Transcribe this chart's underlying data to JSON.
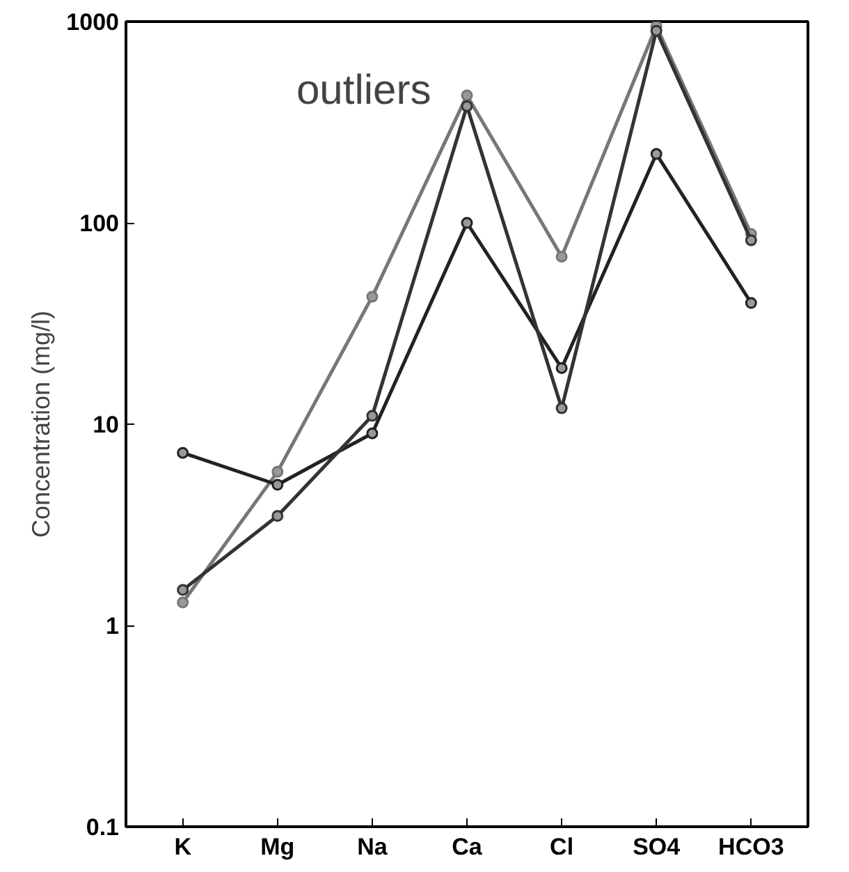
{
  "chart_data": {
    "type": "line",
    "ylabel": "Concentration (mg/l)",
    "annotations": [
      "outliers"
    ],
    "categories": [
      "K",
      "Mg",
      "Na",
      "Ca",
      "Cl",
      "SO4",
      "HCO3"
    ],
    "series": [
      {
        "color": "#777777",
        "values": [
          1.3,
          5.8,
          43,
          430,
          68,
          950,
          88
        ]
      },
      {
        "color": "#222222",
        "values": [
          7.2,
          5.0,
          9,
          100,
          19,
          220,
          40
        ]
      },
      {
        "color": "#333333",
        "values": [
          1.5,
          3.5,
          11,
          380,
          12,
          900,
          82
        ]
      }
    ],
    "log": true,
    "ylim": [
      0.1,
      1000
    ],
    "yticks": [
      0.1,
      1,
      10,
      100,
      1000
    ],
    "grid": false,
    "marker": "circle",
    "line_style": "solid"
  }
}
